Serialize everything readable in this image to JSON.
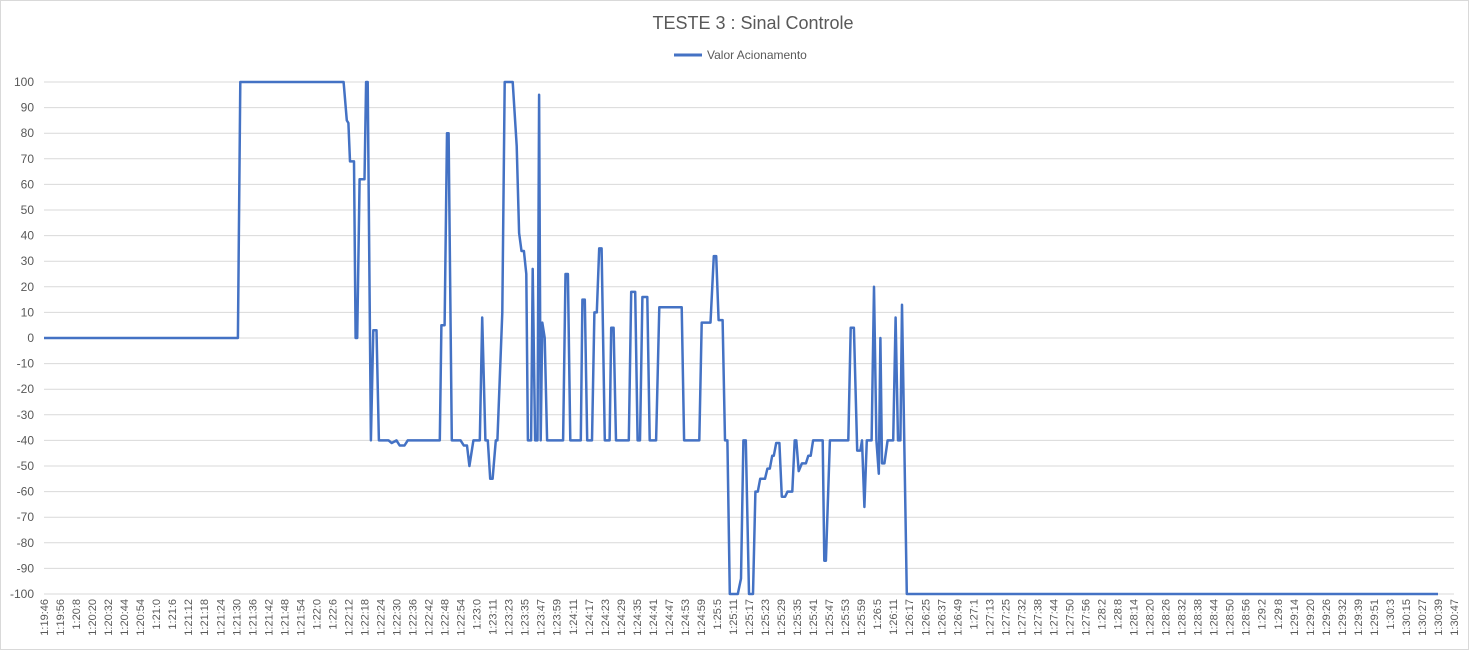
{
  "chart_data": {
    "type": "line",
    "title": "TESTE 3 : Sinal Controle",
    "legend_position": "top",
    "grid": true,
    "ylim": [
      -100,
      100
    ],
    "yticks": [
      100,
      90,
      80,
      70,
      60,
      50,
      40,
      30,
      20,
      10,
      0,
      -10,
      -20,
      -30,
      -40,
      -50,
      -60,
      -70,
      -80,
      -90,
      -100
    ],
    "xtick_labels": [
      "1:19:46",
      "1:19:56",
      "1:20:8",
      "1:20:20",
      "1:20:32",
      "1:20:44",
      "1:20:54",
      "1:21:0",
      "1:21:6",
      "1:21:12",
      "1:21:18",
      "1:21:24",
      "1:21:30",
      "1:21:36",
      "1:21:42",
      "1:21:48",
      "1:21:54",
      "1:22:0",
      "1:22:6",
      "1:22:12",
      "1:22:18",
      "1:22:24",
      "1:22:30",
      "1:22:36",
      "1:22:42",
      "1:22:48",
      "1:22:54",
      "1:23:0",
      "1:23:11",
      "1:23:23",
      "1:23:35",
      "1:23:47",
      "1:23:59",
      "1:24:11",
      "1:24:17",
      "1:24:23",
      "1:24:29",
      "1:24:35",
      "1:24:41",
      "1:24:47",
      "1:24:53",
      "1:24:59",
      "1:25:5",
      "1:25:11",
      "1:25:17",
      "1:25:23",
      "1:25:29",
      "1:25:35",
      "1:25:41",
      "1:25:47",
      "1:25:53",
      "1:25:59",
      "1:26:5",
      "1:26:11",
      "1:26:17",
      "1:26:25",
      "1:26:37",
      "1:26:49",
      "1:27:1",
      "1:27:13",
      "1:27:25",
      "1:27:32",
      "1:27:38",
      "1:27:44",
      "1:27:50",
      "1:27:56",
      "1:28:2",
      "1:28:8",
      "1:28:14",
      "1:28:20",
      "1:28:26",
      "1:28:32",
      "1:28:38",
      "1:28:44",
      "1:28:50",
      "1:28:56",
      "1:29:2",
      "1:29:8",
      "1:29:14",
      "1:29:20",
      "1:29:26",
      "1:29:32",
      "1:29:39",
      "1:29:51",
      "1:30:3",
      "1:30:15",
      "1:30:27",
      "1:30:39",
      "1:30:47"
    ],
    "series": [
      {
        "name": "Valor Acionamento",
        "color": "#4472c4",
        "points": [
          [
            0,
            0
          ],
          [
            12.1,
            0
          ],
          [
            12.25,
            100
          ],
          [
            18.7,
            100
          ],
          [
            18.9,
            85
          ],
          [
            19.0,
            84
          ],
          [
            19.1,
            69
          ],
          [
            19.35,
            69
          ],
          [
            19.45,
            0
          ],
          [
            19.55,
            0
          ],
          [
            19.7,
            62
          ],
          [
            20.0,
            62
          ],
          [
            20.1,
            100
          ],
          [
            20.2,
            100
          ],
          [
            20.4,
            -40
          ],
          [
            20.55,
            3
          ],
          [
            20.75,
            3
          ],
          [
            20.9,
            -40
          ],
          [
            21.5,
            -40
          ],
          [
            21.7,
            -41
          ],
          [
            22.0,
            -40
          ],
          [
            22.2,
            -42
          ],
          [
            22.5,
            -42
          ],
          [
            22.7,
            -40
          ],
          [
            24.7,
            -40
          ],
          [
            24.8,
            5
          ],
          [
            25.0,
            5
          ],
          [
            25.15,
            80
          ],
          [
            25.25,
            80
          ],
          [
            25.45,
            -40
          ],
          [
            26.0,
            -40
          ],
          [
            26.2,
            -42
          ],
          [
            26.4,
            -42
          ],
          [
            26.55,
            -50
          ],
          [
            26.8,
            -40
          ],
          [
            27.2,
            -40
          ],
          [
            27.35,
            8
          ],
          [
            27.55,
            -40
          ],
          [
            27.7,
            -40
          ],
          [
            27.85,
            -55
          ],
          [
            28.0,
            -55
          ],
          [
            28.2,
            -40
          ],
          [
            28.3,
            -40
          ],
          [
            28.6,
            10
          ],
          [
            28.75,
            100
          ],
          [
            29.25,
            100
          ],
          [
            29.5,
            75
          ],
          [
            29.65,
            41
          ],
          [
            29.8,
            34
          ],
          [
            29.95,
            34
          ],
          [
            30.1,
            25
          ],
          [
            30.2,
            -40
          ],
          [
            30.4,
            -40
          ],
          [
            30.5,
            27
          ],
          [
            30.65,
            -40
          ],
          [
            30.8,
            -40
          ],
          [
            30.9,
            95
          ],
          [
            31.0,
            -40
          ],
          [
            31.1,
            6
          ],
          [
            31.25,
            0
          ],
          [
            31.4,
            -40
          ],
          [
            32.4,
            -40
          ],
          [
            32.55,
            25
          ],
          [
            32.7,
            25
          ],
          [
            32.85,
            -40
          ],
          [
            33.5,
            -40
          ],
          [
            33.6,
            15
          ],
          [
            33.75,
            15
          ],
          [
            33.9,
            -40
          ],
          [
            34.2,
            -40
          ],
          [
            34.35,
            10
          ],
          [
            34.5,
            10
          ],
          [
            34.65,
            35
          ],
          [
            34.8,
            35
          ],
          [
            35.0,
            -40
          ],
          [
            35.3,
            -40
          ],
          [
            35.4,
            4
          ],
          [
            35.55,
            4
          ],
          [
            35.7,
            -40
          ],
          [
            36.5,
            -40
          ],
          [
            36.65,
            18
          ],
          [
            36.9,
            18
          ],
          [
            37.05,
            -40
          ],
          [
            37.2,
            -40
          ],
          [
            37.35,
            16
          ],
          [
            37.65,
            16
          ],
          [
            37.8,
            -40
          ],
          [
            38.2,
            -40
          ],
          [
            38.4,
            12
          ],
          [
            39.8,
            12
          ],
          [
            39.95,
            -40
          ],
          [
            40.9,
            -40
          ],
          [
            41.05,
            6
          ],
          [
            41.6,
            6
          ],
          [
            41.8,
            32
          ],
          [
            41.95,
            32
          ],
          [
            42.1,
            7
          ],
          [
            42.35,
            7
          ],
          [
            42.5,
            -40
          ],
          [
            42.65,
            -40
          ],
          [
            42.8,
            -100
          ],
          [
            43.3,
            -100
          ],
          [
            43.5,
            -94
          ],
          [
            43.65,
            -40
          ],
          [
            43.8,
            -40
          ],
          [
            44.0,
            -100
          ],
          [
            44.25,
            -100
          ],
          [
            44.4,
            -60
          ],
          [
            44.55,
            -60
          ],
          [
            44.7,
            -55
          ],
          [
            45.0,
            -55
          ],
          [
            45.15,
            -51
          ],
          [
            45.3,
            -51
          ],
          [
            45.45,
            -46
          ],
          [
            45.55,
            -46
          ],
          [
            45.7,
            -41
          ],
          [
            45.9,
            -41
          ],
          [
            46.05,
            -62
          ],
          [
            46.25,
            -62
          ],
          [
            46.4,
            -60
          ],
          [
            46.7,
            -60
          ],
          [
            46.85,
            -40
          ],
          [
            46.95,
            -40
          ],
          [
            47.1,
            -52
          ],
          [
            47.3,
            -49
          ],
          [
            47.55,
            -49
          ],
          [
            47.7,
            -46
          ],
          [
            47.85,
            -46
          ],
          [
            48.0,
            -40
          ],
          [
            48.6,
            -40
          ],
          [
            48.7,
            -87
          ],
          [
            48.8,
            -87
          ],
          [
            49.05,
            -40
          ],
          [
            50.2,
            -40
          ],
          [
            50.35,
            4
          ],
          [
            50.55,
            4
          ],
          [
            50.75,
            -44
          ],
          [
            50.95,
            -44
          ],
          [
            51.05,
            -40
          ],
          [
            51.2,
            -66
          ],
          [
            51.35,
            -40
          ],
          [
            51.65,
            -40
          ],
          [
            51.8,
            20
          ],
          [
            51.95,
            -40
          ],
          [
            52.1,
            -53
          ],
          [
            52.2,
            0
          ],
          [
            52.3,
            -49
          ],
          [
            52.45,
            -49
          ],
          [
            52.65,
            -40
          ],
          [
            53.0,
            -40
          ],
          [
            53.15,
            8
          ],
          [
            53.3,
            -40
          ],
          [
            53.45,
            -40
          ],
          [
            53.55,
            13
          ],
          [
            53.85,
            -100
          ],
          [
            87,
            -100
          ]
        ]
      }
    ]
  }
}
